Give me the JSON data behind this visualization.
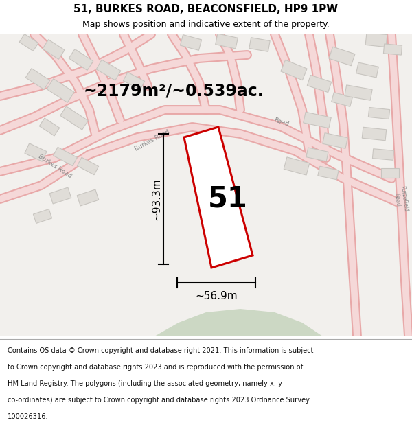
{
  "title_line1": "51, BURKES ROAD, BEACONSFIELD, HP9 1PW",
  "title_line2": "Map shows position and indicative extent of the property.",
  "area_text": "~2179m²/~0.539ac.",
  "number_label": "51",
  "dim_height": "~93.3m",
  "dim_width": "~56.9m",
  "footer_lines": [
    "Contains OS data © Crown copyright and database right 2021. This information is subject",
    "to Crown copyright and database rights 2023 and is reproduced with the permission of",
    "HM Land Registry. The polygons (including the associated geometry, namely x, y",
    "co-ordinates) are subject to Crown copyright and database rights 2023 Ordnance Survey",
    "100026316."
  ],
  "map_bg": "#f2f0ed",
  "road_color": "#f5d8d8",
  "road_outline": "#e8a8a8",
  "property_fill": "#ffffff",
  "property_edge": "#cc0000",
  "green_area": "#ccd8c4",
  "building_fill": "#e0ddd8",
  "building_edge": "#c8c5c0",
  "text_color": "#000000",
  "white": "#ffffff"
}
